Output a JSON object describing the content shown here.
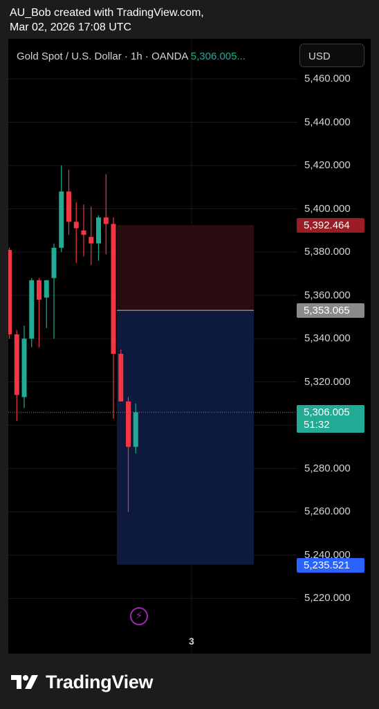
{
  "header": {
    "line1": "AU_Bob created with TradingView.com,",
    "line2": "Mar 02, 2026 17:08 UTC"
  },
  "symbol": {
    "name": "Gold Spot / U.S. Dollar · 1h · OANDA",
    "price": "5,306.005..."
  },
  "currency_button": "USD",
  "brand": "TradingView",
  "colors": {
    "up": "#22ab94",
    "down": "#f23645",
    "stop_zone": "#2a0d10",
    "target_zone": "#0d1a3d",
    "stop_badge": "#9a1c24",
    "entry_badge": "#8a8a8a",
    "target_badge": "#2962ff",
    "current_badge": "#22ab94",
    "indicator": "#9c27b0"
  },
  "icons": {
    "indicator": "lightning-bolt-icon",
    "logo": "tradingview-logo-icon"
  },
  "chart_data": {
    "type": "candlestick",
    "timeframe": "1h",
    "ylim": [
      5210,
      5470
    ],
    "y_ticks": [
      "5,460.000",
      "5,440.000",
      "5,420.000",
      "5,400.000",
      "5,380.000",
      "5,360.000",
      "5,340.000",
      "5,320.000",
      "5,300.000",
      "5,280.000",
      "5,260.000",
      "5,240.000",
      "5,220.000"
    ],
    "x_tick_labels": [
      "3"
    ],
    "candles": [
      {
        "open": 5381,
        "high": 5382,
        "low": 5340,
        "close": 5342
      },
      {
        "open": 5342,
        "high": 5344,
        "low": 5302,
        "close": 5314
      },
      {
        "open": 5313,
        "high": 5346,
        "low": 5308,
        "close": 5340
      },
      {
        "open": 5340,
        "high": 5368,
        "low": 5336,
        "close": 5367
      },
      {
        "open": 5367,
        "high": 5368,
        "low": 5336,
        "close": 5358
      },
      {
        "open": 5359,
        "high": 5367,
        "low": 5345,
        "close": 5367
      },
      {
        "open": 5368,
        "high": 5384,
        "low": 5340,
        "close": 5382
      },
      {
        "open": 5382,
        "high": 5420,
        "low": 5380,
        "close": 5408
      },
      {
        "open": 5408,
        "high": 5418,
        "low": 5388,
        "close": 5394
      },
      {
        "open": 5394,
        "high": 5403,
        "low": 5375,
        "close": 5391
      },
      {
        "open": 5390,
        "high": 5402,
        "low": 5378,
        "close": 5388
      },
      {
        "open": 5387,
        "high": 5401,
        "low": 5374,
        "close": 5384
      },
      {
        "open": 5384,
        "high": 5397,
        "low": 5376,
        "close": 5396
      },
      {
        "open": 5396,
        "high": 5416,
        "low": 5379,
        "close": 5393
      },
      {
        "open": 5393,
        "high": 5396,
        "low": 5303,
        "close": 5333
      },
      {
        "open": 5333,
        "high": 5335,
        "low": 5311,
        "close": 5311
      },
      {
        "open": 5311,
        "high": 5313,
        "low": 5260,
        "close": 5290
      },
      {
        "open": 5290,
        "high": 5310,
        "low": 5287,
        "close": 5306
      }
    ],
    "position": {
      "type": "short",
      "entry": "5,353.065",
      "stop": "5,392.464",
      "target": "5,235.521"
    },
    "current_price": "5,306.005",
    "countdown": "51:32"
  }
}
